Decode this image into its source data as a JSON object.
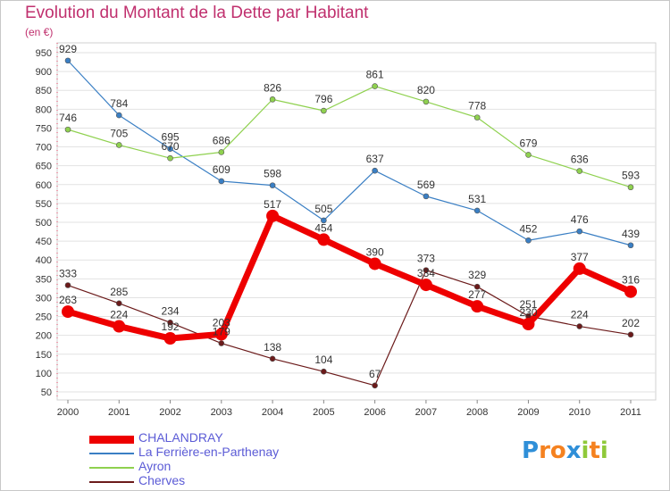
{
  "chart_data": {
    "type": "line",
    "title": "Evolution du Montant de la Dette par Habitant",
    "subtitle": "(en €)",
    "xlabel": "",
    "ylabel": "",
    "x": [
      "2000",
      "2001",
      "2002",
      "2003",
      "2004",
      "2005",
      "2006",
      "2007",
      "2008",
      "2009",
      "2010",
      "2011"
    ],
    "yticks": [
      50,
      100,
      150,
      200,
      250,
      300,
      350,
      400,
      450,
      500,
      550,
      600,
      650,
      700,
      750,
      800,
      850,
      900,
      950
    ],
    "ylim": [
      50,
      950
    ],
    "grid": "horizontal",
    "legend_position": "bottom-left",
    "series": [
      {
        "name": "CHALANDRAY",
        "color": "#ee0000",
        "values": [
          263,
          224,
          192,
          203,
          517,
          454,
          390,
          334,
          277,
          230,
          377,
          316
        ]
      },
      {
        "name": "La Ferrière-en-Parthenay",
        "color": "#3a7fc4",
        "values": [
          929,
          784,
          695,
          609,
          598,
          505,
          637,
          569,
          531,
          452,
          476,
          439
        ]
      },
      {
        "name": "Ayron",
        "color": "#8fd14f",
        "values": [
          746,
          705,
          670,
          686,
          826,
          796,
          861,
          820,
          778,
          679,
          636,
          593
        ]
      },
      {
        "name": "Cherves",
        "color": "#6b1a1a",
        "values": [
          333,
          285,
          234,
          179,
          138,
          104,
          67,
          373,
          329,
          251,
          224,
          202
        ]
      }
    ]
  },
  "logo": {
    "letters": [
      "P",
      "r",
      "o",
      "x",
      "i",
      "t",
      "i"
    ],
    "colors": [
      "#2f8fd8",
      "#f58220",
      "#f58220",
      "#2f8fd8",
      "#8fc93a",
      "#f58220",
      "#8fc93a"
    ]
  }
}
